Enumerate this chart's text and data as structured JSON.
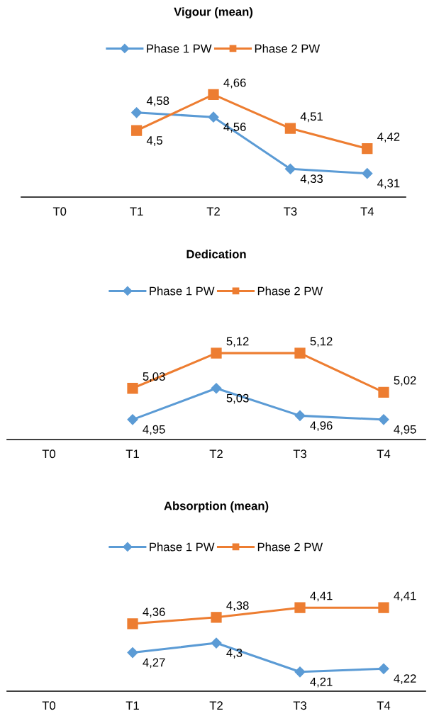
{
  "chart_data": [
    {
      "type": "line",
      "title": "Vigour (mean)",
      "categories": [
        "T0",
        "T1",
        "T2",
        "T3",
        "T4"
      ],
      "tick_labels": "x",
      "legend": "top",
      "grid": false,
      "series": [
        {
          "name": "Phase 1 PW",
          "color": "#5b9bd5",
          "marker": "diamond",
          "values": [
            null,
            4.58,
            4.56,
            4.33,
            4.31
          ],
          "value_labels": [
            null,
            "4,58",
            "4,56",
            "4,33",
            "4,31"
          ]
        },
        {
          "name": "Phase 2 PW",
          "color": "#ed7d31",
          "marker": "square",
          "values": [
            null,
            4.5,
            4.66,
            4.51,
            4.42
          ],
          "value_labels": [
            null,
            "4,5",
            "4,66",
            "4,51",
            "4,42"
          ]
        }
      ]
    },
    {
      "type": "line",
      "title": "Dedication",
      "categories": [
        "T0",
        "T1",
        "T2",
        "T3",
        "T4"
      ],
      "tick_labels": "x",
      "legend": "top",
      "grid": false,
      "series": [
        {
          "name": "Phase 1 PW",
          "color": "#5b9bd5",
          "marker": "diamond",
          "values": [
            null,
            4.95,
            5.03,
            4.96,
            4.95
          ],
          "value_labels": [
            null,
            "4,95",
            "5,03",
            "4,96",
            "4,95"
          ]
        },
        {
          "name": "Phase 2 PW",
          "color": "#ed7d31",
          "marker": "square",
          "values": [
            null,
            5.03,
            5.12,
            5.12,
            5.02
          ],
          "value_labels": [
            null,
            "5,03",
            "5,12",
            "5,12",
            "5,02"
          ]
        }
      ]
    },
    {
      "type": "line",
      "title": "Absorption (mean)",
      "categories": [
        "T0",
        "T1",
        "T2",
        "T3",
        "T4"
      ],
      "tick_labels": "x",
      "legend": "top",
      "grid": false,
      "series": [
        {
          "name": "Phase 1 PW",
          "color": "#5b9bd5",
          "marker": "diamond",
          "values": [
            null,
            4.27,
            4.3,
            4.21,
            4.22
          ],
          "value_labels": [
            null,
            "4,27",
            "4,3",
            "4,21",
            "4,22"
          ]
        },
        {
          "name": "Phase 2 PW",
          "color": "#ed7d31",
          "marker": "square",
          "values": [
            null,
            4.36,
            4.38,
            4.41,
            4.41
          ],
          "value_labels": [
            null,
            "4,36",
            "4,38",
            "4,41",
            "4,41"
          ]
        }
      ]
    }
  ]
}
